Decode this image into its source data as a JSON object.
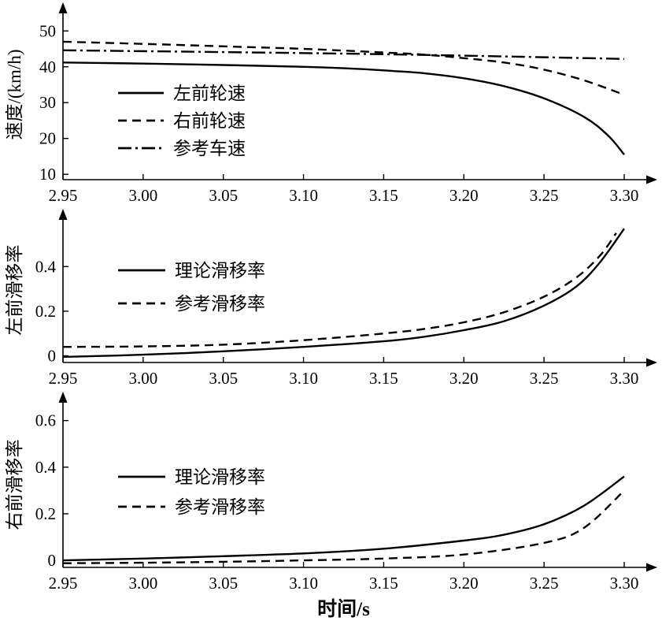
{
  "figure": {
    "xlabel": "时间/s"
  },
  "chart_data": [
    {
      "type": "line",
      "title": "",
      "ylabel": "速度/(km/h)",
      "xlabel": "",
      "xlim": [
        2.95,
        3.3
      ],
      "ylim": [
        8.5,
        56
      ],
      "xticks": [
        "2.95",
        "3.00",
        "3.05",
        "3.10",
        "3.15",
        "3.20",
        "3.25",
        "3.30"
      ],
      "yticks": [
        "10",
        "20",
        "30",
        "40",
        "50"
      ],
      "grid": false,
      "legend_position": "inside-left",
      "series": [
        {
          "name": "左前轮速",
          "style": "solid",
          "x": [
            2.95,
            3.0,
            3.05,
            3.1,
            3.125,
            3.15,
            3.175,
            3.2,
            3.225,
            3.25,
            3.275,
            3.29,
            3.3
          ],
          "y": [
            41.2,
            40.9,
            40.5,
            40.0,
            39.6,
            39.0,
            38.2,
            36.8,
            34.6,
            31.2,
            26.0,
            20.8,
            15.5
          ]
        },
        {
          "name": "右前轮速",
          "style": "dashed",
          "x": [
            2.95,
            3.0,
            3.05,
            3.1,
            3.15,
            3.175,
            3.2,
            3.225,
            3.25,
            3.275,
            3.3
          ],
          "y": [
            47.0,
            46.4,
            45.7,
            45.0,
            44.0,
            43.4,
            42.4,
            41.2,
            39.2,
            36.2,
            32.2
          ]
        },
        {
          "name": "参考车速",
          "style": "dashdot",
          "x": [
            2.95,
            3.05,
            3.15,
            3.225,
            3.3
          ],
          "y": [
            44.6,
            44.1,
            43.5,
            42.9,
            42.2
          ]
        }
      ]
    },
    {
      "type": "line",
      "title": "",
      "ylabel": "左前滑移率",
      "xlabel": "",
      "xlim": [
        2.95,
        3.3
      ],
      "ylim": [
        -0.03,
        0.62
      ],
      "xticks": [
        "2.95",
        "3.00",
        "3.05",
        "3.10",
        "3.15",
        "3.20",
        "3.25",
        "3.30"
      ],
      "yticks": [
        "0",
        "0.2",
        "0.4"
      ],
      "grid": false,
      "legend_position": "inside-left",
      "series": [
        {
          "name": "理论滑移率",
          "style": "solid",
          "x": [
            2.95,
            3.0,
            3.05,
            3.1,
            3.15,
            3.175,
            3.2,
            3.225,
            3.25,
            3.27,
            3.285,
            3.3
          ],
          "y": [
            -0.005,
            0.005,
            0.02,
            0.04,
            0.065,
            0.085,
            0.115,
            0.155,
            0.225,
            0.31,
            0.42,
            0.57
          ]
        },
        {
          "name": "参考滑移率",
          "style": "dashed",
          "x": [
            2.95,
            3.0,
            3.05,
            3.1,
            3.15,
            3.175,
            3.2,
            3.225,
            3.25,
            3.27,
            3.285,
            3.295
          ],
          "y": [
            0.04,
            0.042,
            0.05,
            0.07,
            0.1,
            0.12,
            0.15,
            0.195,
            0.265,
            0.35,
            0.45,
            0.55
          ]
        }
      ]
    },
    {
      "type": "line",
      "title": "",
      "ylabel": "右前滑移率",
      "xlabel": "时间/s",
      "xlim": [
        2.95,
        3.3
      ],
      "ylim": [
        -0.03,
        0.68
      ],
      "xticks": [
        "2.95",
        "3.00",
        "3.05",
        "3.10",
        "3.15",
        "3.20",
        "3.25",
        "3.30"
      ],
      "yticks": [
        "0",
        "0.2",
        "0.4",
        "0.6"
      ],
      "grid": false,
      "legend_position": "inside-left",
      "series": [
        {
          "name": "理论滑移率",
          "style": "solid",
          "x": [
            2.95,
            3.0,
            3.05,
            3.1,
            3.15,
            3.2,
            3.225,
            3.25,
            3.275,
            3.3
          ],
          "y": [
            0.0,
            0.008,
            0.018,
            0.03,
            0.05,
            0.085,
            0.11,
            0.155,
            0.235,
            0.36
          ]
        },
        {
          "name": "参考滑移率",
          "style": "dashed",
          "x": [
            2.95,
            3.0,
            3.05,
            3.1,
            3.15,
            3.2,
            3.25,
            3.275,
            3.3
          ],
          "y": [
            -0.012,
            -0.01,
            -0.006,
            0.0,
            0.008,
            0.025,
            0.075,
            0.14,
            0.3
          ]
        }
      ]
    }
  ]
}
